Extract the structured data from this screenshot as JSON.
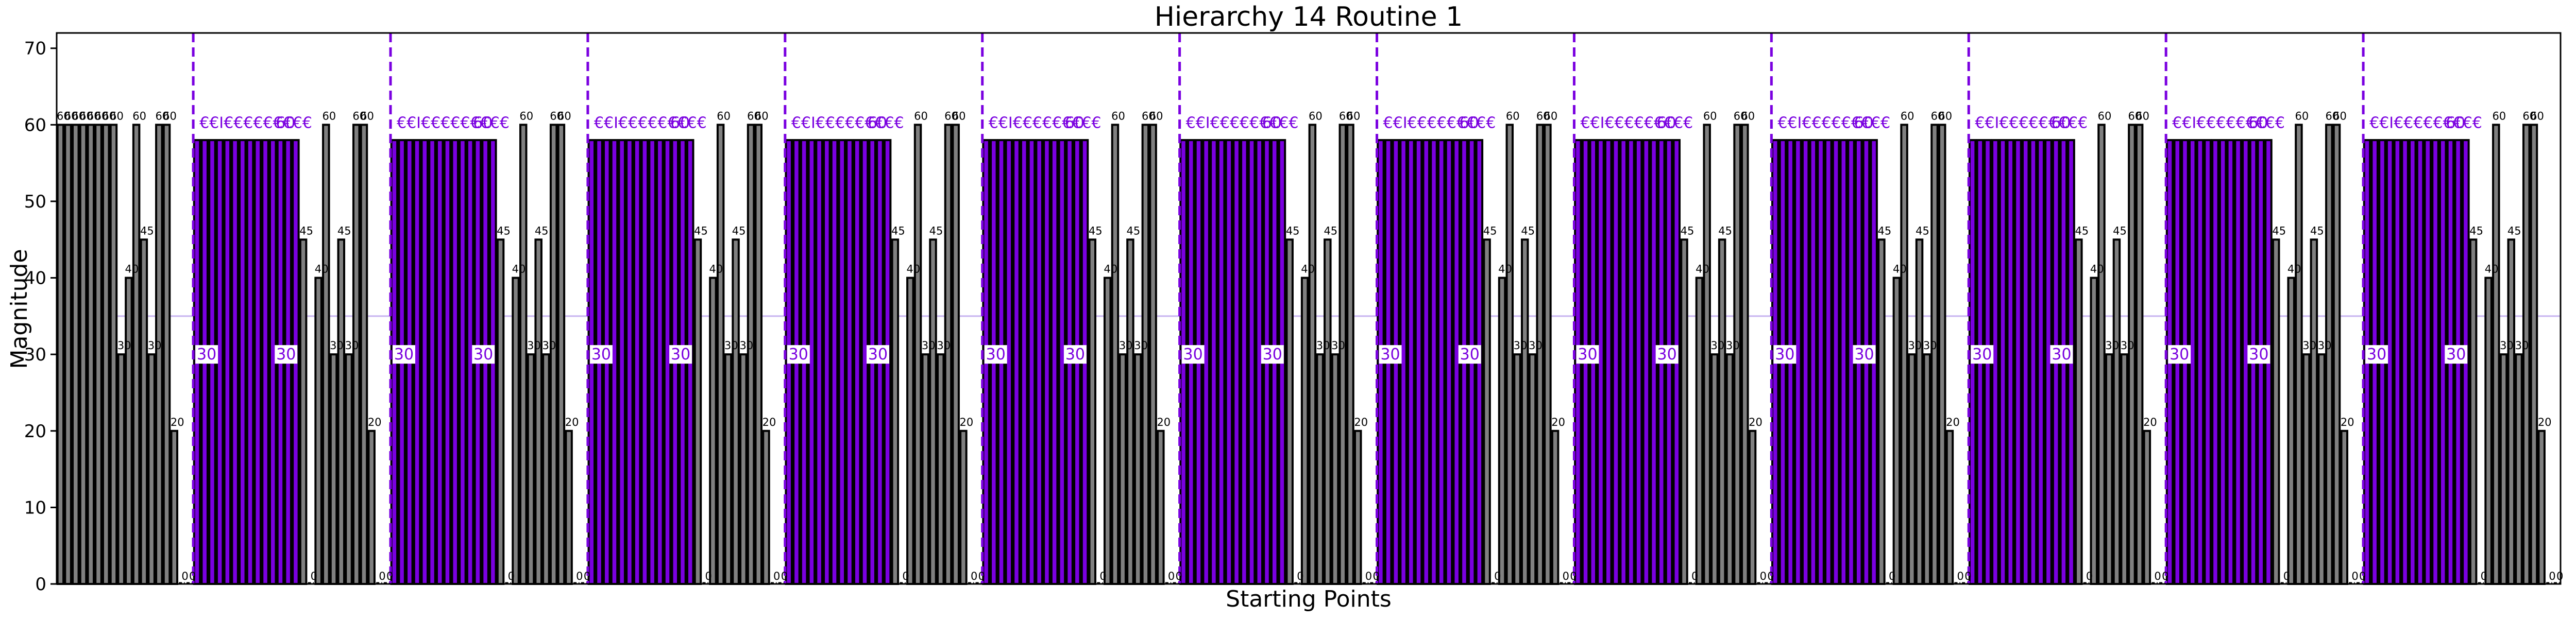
{
  "chart_data": {
    "type": "bar",
    "title": "Hierarchy 14 Routine 1",
    "xlabel": "Starting Points",
    "ylabel": "Magnitude",
    "ylim": [
      0,
      72
    ],
    "yticks": [
      0,
      10,
      20,
      30,
      40,
      50,
      60,
      70
    ],
    "threshold_line": 35,
    "colors": {
      "gray_bar": "#808080",
      "purple_bar": "#7a00e0",
      "bar_edge": "#000000",
      "divider": "#7a00e0",
      "threshold": "#c8b4f0"
    },
    "gray_pattern": [
      45,
      0,
      40,
      60,
      30,
      45,
      30,
      60,
      60,
      20,
      0,
      0
    ],
    "purple_run": {
      "value": 58,
      "count": 14,
      "label_start": "30",
      "label_end": "30",
      "label_top": "60",
      "top_marks": "€€ⵏ€€€€€€€€€"
    },
    "first_group": [
      60,
      60,
      60,
      60,
      60,
      60,
      60,
      60,
      30,
      40,
      60,
      45,
      30,
      60,
      60,
      20,
      0,
      0
    ],
    "segments": 12
  }
}
